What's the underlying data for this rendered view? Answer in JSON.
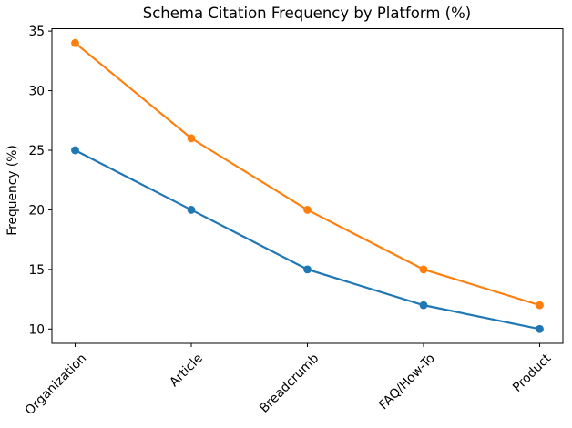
{
  "chart_data": {
    "type": "line",
    "title": "Schema Citation Frequency by Platform (%)",
    "xlabel": "",
    "ylabel": "Frequency (%)",
    "categories": [
      "Organization",
      "Article",
      "Breadcrumb",
      "FAQ/How-To",
      "Product"
    ],
    "series": [
      {
        "name": "series-1",
        "color": "#1f77b4",
        "marker": "circle",
        "values": [
          25,
          20,
          15,
          12,
          10
        ]
      },
      {
        "name": "series-2",
        "color": "#ff7f0e",
        "marker": "circle",
        "values": [
          34,
          26,
          20,
          15,
          12
        ]
      }
    ],
    "yticks": [
      10,
      15,
      20,
      25,
      30,
      35
    ],
    "ylim": [
      8.8,
      35.2
    ],
    "x_tick_rotation": 45,
    "legend": false,
    "grid": false,
    "background": "#ffffff",
    "axis_color": "#000000",
    "text_color": "#000000"
  }
}
